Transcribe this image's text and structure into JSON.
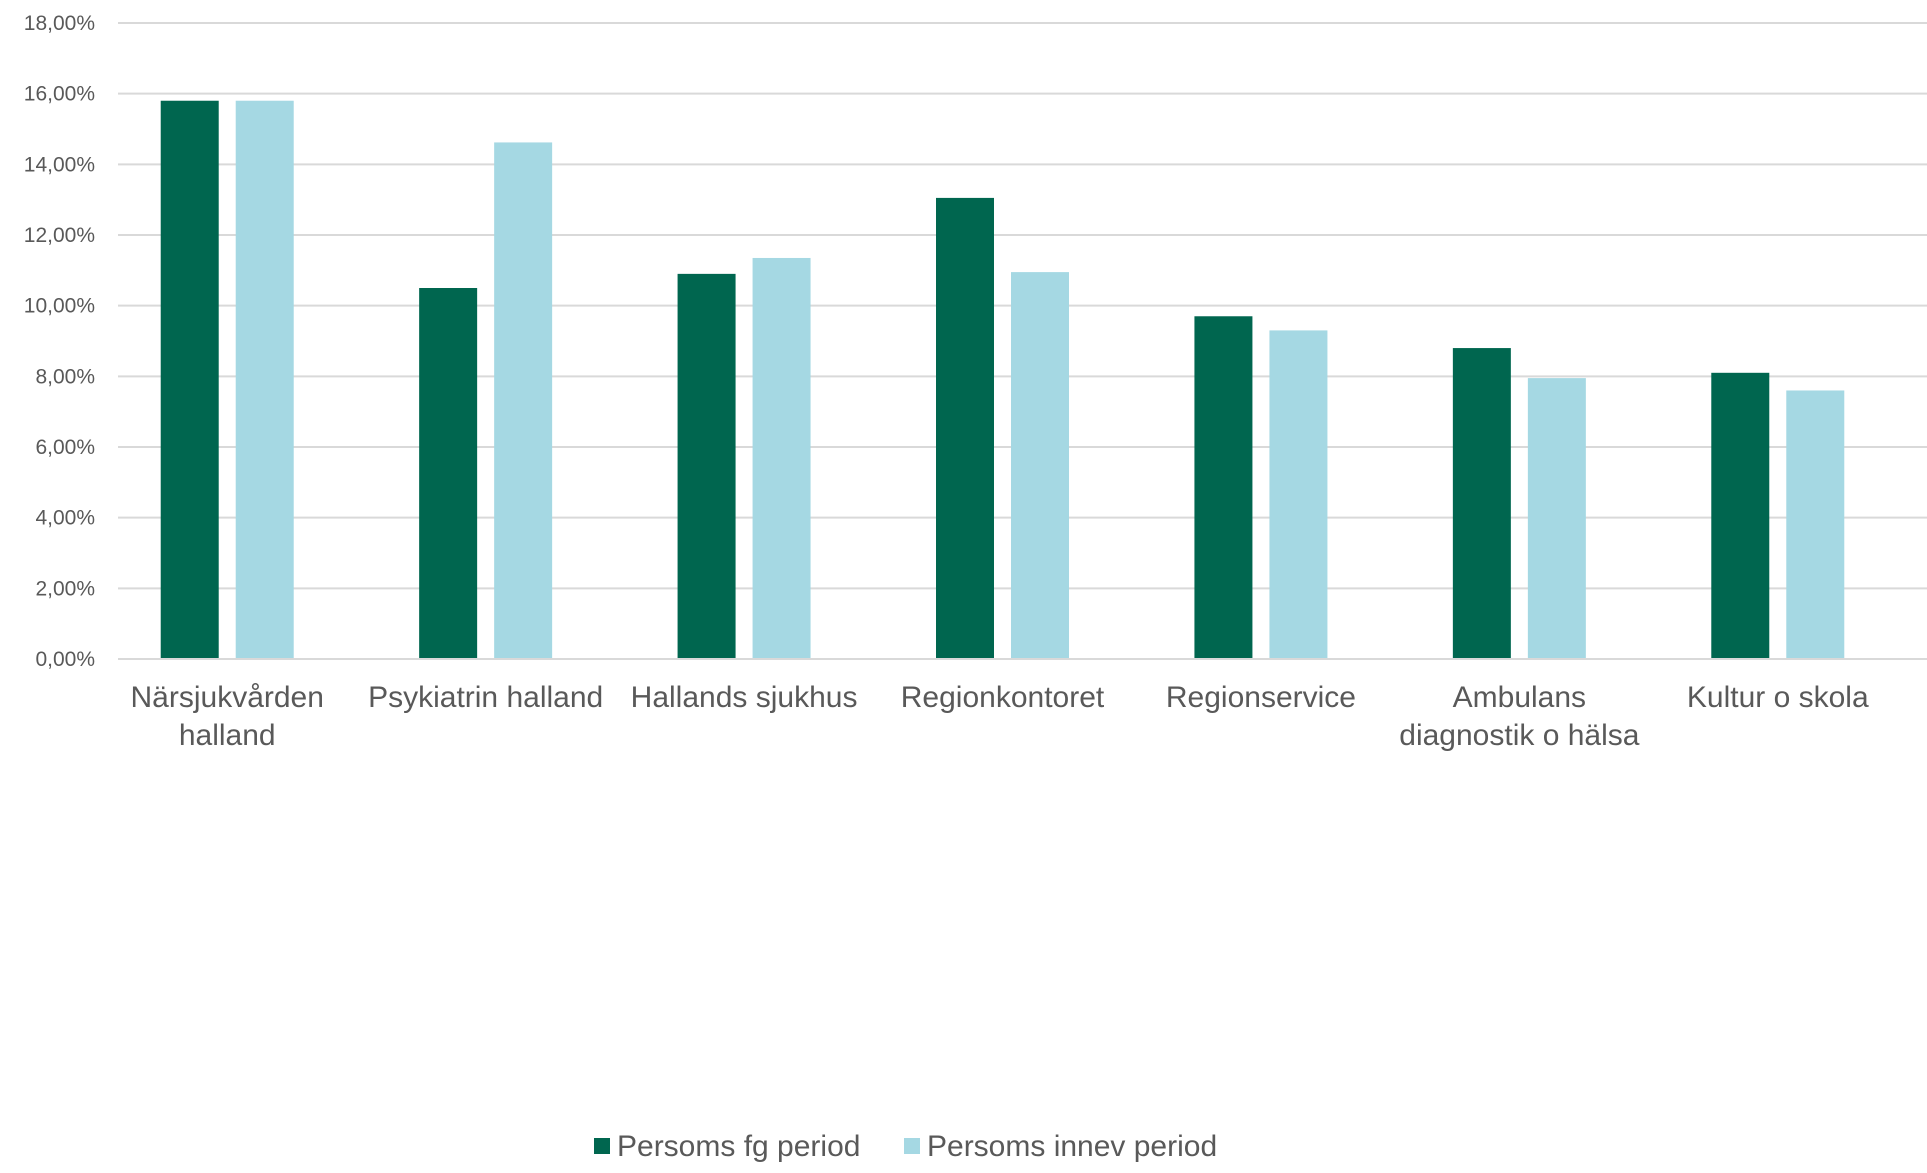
{
  "chart_data": {
    "type": "bar",
    "categories": [
      [
        "Närsjukvården",
        "halland"
      ],
      [
        "Psykiatrin halland"
      ],
      [
        "Hallands sjukhus"
      ],
      [
        "Regionkontoret"
      ],
      [
        "Regionservice"
      ],
      [
        "Ambulans",
        "diagnostik o hälsa"
      ],
      [
        "Kultur o skola"
      ]
    ],
    "series": [
      {
        "name": "Persoms fg period",
        "color": "#00664f",
        "values": [
          15.8,
          10.5,
          10.9,
          13.05,
          9.7,
          8.8,
          8.1
        ]
      },
      {
        "name": "Persoms innev period",
        "color": "#a5d8e3",
        "values": [
          15.8,
          14.62,
          11.35,
          10.95,
          9.3,
          7.95,
          7.6
        ]
      }
    ],
    "ylim": [
      0,
      18
    ],
    "yticks": [
      0,
      2,
      4,
      6,
      8,
      10,
      12,
      14,
      16,
      18
    ],
    "ytick_labels": [
      "0,00%",
      "2,00%",
      "4,00%",
      "6,00%",
      "8,00%",
      "10,00%",
      "12,00%",
      "14,00%",
      "16,00%",
      "18,00%"
    ],
    "grid": true,
    "legend_position": "bottom",
    "title": "",
    "xlabel": "",
    "ylabel": ""
  }
}
